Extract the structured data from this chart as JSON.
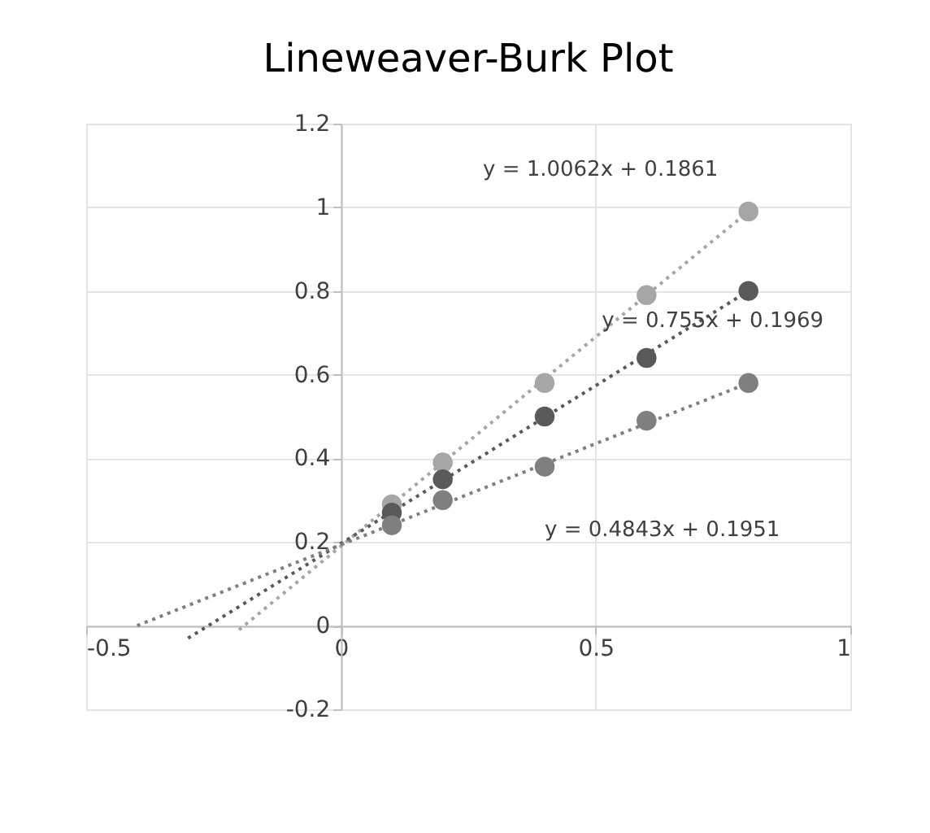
{
  "chart_data": {
    "type": "scatter",
    "title": "Lineweaver-Burk Plot",
    "x": [
      0.1,
      0.2,
      0.4,
      0.6,
      0.8
    ],
    "series": [
      {
        "color": "#a6a6a6",
        "values": [
          0.29,
          0.39,
          0.58,
          0.79,
          0.99
        ]
      },
      {
        "color": "#595959",
        "values": [
          0.27,
          0.35,
          0.5,
          0.64,
          0.8
        ]
      },
      {
        "color": "#7f7f7f",
        "values": [
          0.24,
          0.3,
          0.38,
          0.49,
          0.58
        ]
      },
      {
        "type": "line",
        "marker": "none",
        "line_style": "dotted",
        "name": "y = 1.0062x + 0.1861",
        "color": "#a6a6a6",
        "x": [
          -0.2,
          0.8
        ],
        "values": [
          -0.01,
          0.99
        ]
      },
      {
        "type": "line",
        "marker": "none",
        "line_style": "dotted",
        "name": "y = 0.755x + 0.1969",
        "color": "#595959",
        "x": [
          -0.3,
          0.8
        ],
        "values": [
          -0.03,
          0.8
        ]
      },
      {
        "type": "line",
        "marker": "none",
        "line_style": "dotted",
        "name": "y = 0.4843x + 0.1951",
        "color": "#7f7f7f",
        "x": [
          -0.4,
          0.8
        ],
        "values": [
          0.0,
          0.58
        ]
      }
    ],
    "xlim": [
      -0.5,
      1
    ],
    "ylim": [
      -0.2,
      1.2
    ],
    "xticks": [
      -0.5,
      0,
      0.5,
      1
    ],
    "yticks": [
      -0.2,
      0,
      0.2,
      0.4,
      0.6,
      0.8,
      1,
      1.2
    ],
    "grid": true,
    "marker": "circle"
  }
}
